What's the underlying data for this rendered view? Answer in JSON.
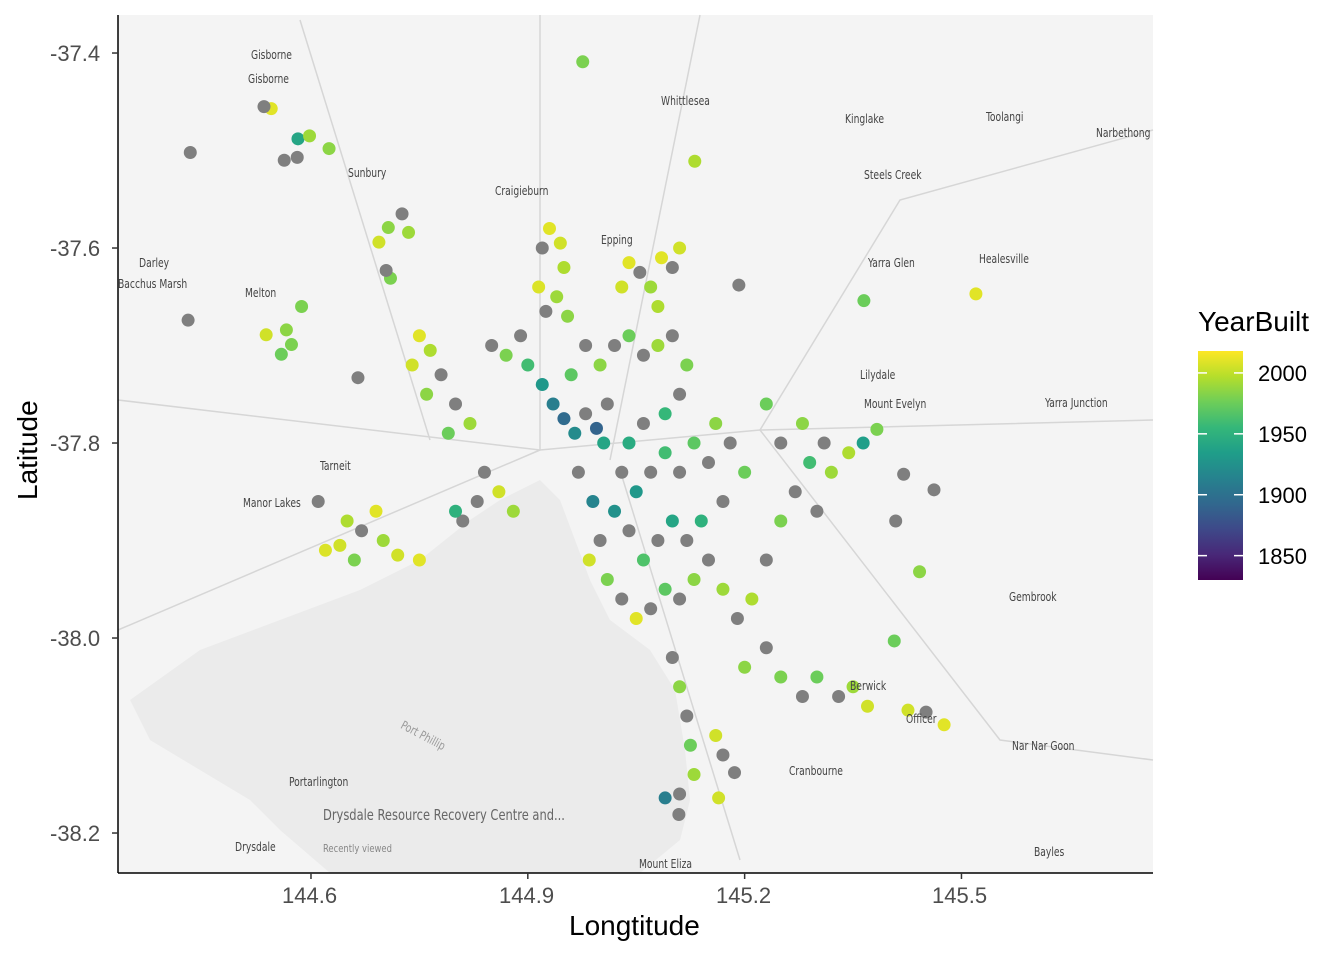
{
  "chart_data": {
    "type": "scatter",
    "title": "",
    "xlabel": "Longtitude",
    "ylabel": "Latitude",
    "xlim": [
      144.333,
      145.765
    ],
    "ylim": [
      -38.241,
      -37.361
    ],
    "x_ticks": [
      144.6,
      144.9,
      145.2,
      145.5
    ],
    "x_tick_labels": [
      "144.6",
      "144.9",
      "145.2",
      "145.5"
    ],
    "y_ticks": [
      -37.4,
      -37.6,
      -37.8,
      -38.0,
      -38.2
    ],
    "y_tick_labels": [
      "-37.4",
      "-37.6",
      "-37.8",
      "-38.0",
      "-38.2"
    ],
    "grid": false,
    "background": "road map of Melbourne region",
    "color_scale": {
      "name": "YearBuilt",
      "palette": "viridis",
      "range": [
        1830,
        2018
      ],
      "ticks": [
        2000,
        1950,
        1900,
        1850
      ],
      "tick_labels": [
        "2000",
        "1950",
        "1900",
        "1850"
      ],
      "na_color": "#7f7f7f"
    },
    "legend": {
      "title": "YearBuilt",
      "placement": "right"
    },
    "point_fields": [
      "Longtitude",
      "Latitude",
      "YearBuilt"
    ],
    "points": [
      [
        144.976,
        -37.409,
        1980
      ],
      [
        144.545,
        -37.457,
        2010
      ],
      [
        144.535,
        -37.455,
        null
      ],
      [
        144.433,
        -37.502,
        null
      ],
      [
        144.582,
        -37.488,
        1940
      ],
      [
        144.598,
        -37.485,
        1990
      ],
      [
        144.625,
        -37.498,
        1985
      ],
      [
        144.563,
        -37.51,
        null
      ],
      [
        144.581,
        -37.507,
        null
      ],
      [
        145.131,
        -37.511,
        1995
      ],
      [
        144.726,
        -37.565,
        null
      ],
      [
        144.707,
        -37.579,
        1985
      ],
      [
        144.735,
        -37.584,
        1990
      ],
      [
        144.694,
        -37.594,
        2005
      ],
      [
        144.71,
        -37.631,
        1980
      ],
      [
        144.704,
        -37.623,
        null
      ],
      [
        144.43,
        -37.674,
        null
      ],
      [
        144.538,
        -37.689,
        2005
      ],
      [
        144.566,
        -37.684,
        1985
      ],
      [
        144.573,
        -37.699,
        1980
      ],
      [
        144.559,
        -37.709,
        1975
      ],
      [
        144.587,
        -37.66,
        1980
      ],
      [
        144.665,
        -37.733,
        null
      ],
      [
        145.192,
        -37.638,
        null
      ],
      [
        145.365,
        -37.654,
        1975
      ],
      [
        145.52,
        -37.647,
        2010
      ],
      [
        145.364,
        -37.8,
        1935
      ],
      [
        145.383,
        -37.786,
        1980
      ],
      [
        145.344,
        -37.81,
        1995
      ],
      [
        145.42,
        -37.832,
        null
      ],
      [
        145.462,
        -37.848,
        null
      ],
      [
        145.409,
        -37.88,
        null
      ],
      [
        145.442,
        -37.932,
        1985
      ],
      [
        145.407,
        -38.003,
        1975
      ],
      [
        145.426,
        -38.074,
        2005
      ],
      [
        145.451,
        -38.076,
        null
      ],
      [
        145.476,
        -38.089,
        2010
      ],
      [
        145.109,
        -38.181,
        null
      ],
      [
        145.09,
        -38.164,
        1910
      ],
      [
        145.164,
        -38.164,
        2005
      ],
      [
        145.186,
        -38.138,
        null
      ],
      [
        144.93,
        -37.58,
        2010
      ],
      [
        144.945,
        -37.595,
        2005
      ],
      [
        144.92,
        -37.6,
        null
      ],
      [
        144.95,
        -37.62,
        1995
      ],
      [
        144.915,
        -37.64,
        2008
      ],
      [
        144.94,
        -37.65,
        1990
      ],
      [
        144.925,
        -37.665,
        null
      ],
      [
        144.955,
        -37.67,
        1985
      ],
      [
        145.04,
        -37.615,
        2010
      ],
      [
        145.055,
        -37.625,
        null
      ],
      [
        145.03,
        -37.64,
        2005
      ],
      [
        145.07,
        -37.64,
        1990
      ],
      [
        145.085,
        -37.61,
        2010
      ],
      [
        145.1,
        -37.62,
        null
      ],
      [
        145.11,
        -37.6,
        2005
      ],
      [
        145.08,
        -37.66,
        1995
      ],
      [
        144.75,
        -37.69,
        2010
      ],
      [
        144.765,
        -37.705,
        1995
      ],
      [
        144.74,
        -37.72,
        2005
      ],
      [
        144.78,
        -37.73,
        null
      ],
      [
        144.76,
        -37.75,
        1985
      ],
      [
        144.8,
        -37.76,
        null
      ],
      [
        144.79,
        -37.79,
        1975
      ],
      [
        144.82,
        -37.78,
        1990
      ],
      [
        144.85,
        -37.7,
        null
      ],
      [
        144.87,
        -37.71,
        1980
      ],
      [
        144.89,
        -37.69,
        null
      ],
      [
        144.9,
        -37.72,
        1960
      ],
      [
        144.92,
        -37.74,
        1930
      ],
      [
        144.935,
        -37.76,
        1910
      ],
      [
        144.95,
        -37.775,
        1895
      ],
      [
        144.965,
        -37.79,
        1920
      ],
      [
        144.98,
        -37.77,
        null
      ],
      [
        144.995,
        -37.785,
        1890
      ],
      [
        145.005,
        -37.8,
        1940
      ],
      [
        145.01,
        -37.76,
        null
      ],
      [
        144.96,
        -37.73,
        1970
      ],
      [
        144.98,
        -37.7,
        null
      ],
      [
        145.0,
        -37.72,
        1985
      ],
      [
        145.02,
        -37.7,
        null
      ],
      [
        145.04,
        -37.69,
        1975
      ],
      [
        145.06,
        -37.71,
        null
      ],
      [
        145.08,
        -37.7,
        1990
      ],
      [
        145.1,
        -37.69,
        null
      ],
      [
        145.12,
        -37.72,
        1980
      ],
      [
        145.11,
        -37.75,
        null
      ],
      [
        145.09,
        -37.77,
        1955
      ],
      [
        145.06,
        -37.78,
        null
      ],
      [
        145.04,
        -37.8,
        1945
      ],
      [
        145.03,
        -37.83,
        null
      ],
      [
        145.05,
        -37.85,
        1930
      ],
      [
        145.07,
        -37.83,
        null
      ],
      [
        145.09,
        -37.81,
        1960
      ],
      [
        145.11,
        -37.83,
        null
      ],
      [
        145.13,
        -37.8,
        1970
      ],
      [
        145.15,
        -37.82,
        null
      ],
      [
        145.16,
        -37.78,
        1985
      ],
      [
        145.18,
        -37.8,
        null
      ],
      [
        145.2,
        -37.83,
        1975
      ],
      [
        145.17,
        -37.86,
        null
      ],
      [
        145.14,
        -37.88,
        1950
      ],
      [
        145.12,
        -37.9,
        null
      ],
      [
        145.1,
        -37.88,
        1940
      ],
      [
        145.08,
        -37.9,
        null
      ],
      [
        145.06,
        -37.92,
        1965
      ],
      [
        145.04,
        -37.89,
        null
      ],
      [
        145.02,
        -37.87,
        1925
      ],
      [
        145.0,
        -37.9,
        null
      ],
      [
        144.99,
        -37.86,
        1915
      ],
      [
        144.97,
        -37.83,
        null
      ],
      [
        144.985,
        -37.92,
        2005
      ],
      [
        145.01,
        -37.94,
        1980
      ],
      [
        145.03,
        -37.96,
        null
      ],
      [
        145.05,
        -37.98,
        2010
      ],
      [
        145.07,
        -37.97,
        null
      ],
      [
        145.09,
        -37.95,
        1970
      ],
      [
        145.11,
        -37.96,
        null
      ],
      [
        145.13,
        -37.94,
        1985
      ],
      [
        145.15,
        -37.92,
        null
      ],
      [
        145.17,
        -37.95,
        1990
      ],
      [
        145.19,
        -37.98,
        null
      ],
      [
        145.21,
        -37.96,
        1995
      ],
      [
        145.23,
        -37.92,
        null
      ],
      [
        145.25,
        -37.88,
        1980
      ],
      [
        145.27,
        -37.85,
        null
      ],
      [
        145.29,
        -37.82,
        1960
      ],
      [
        145.31,
        -37.8,
        null
      ],
      [
        145.28,
        -37.78,
        1985
      ],
      [
        145.25,
        -37.8,
        null
      ],
      [
        145.23,
        -37.76,
        1975
      ],
      [
        145.32,
        -37.83,
        1990
      ],
      [
        145.3,
        -37.87,
        null
      ],
      [
        144.84,
        -37.83,
        null
      ],
      [
        144.86,
        -37.85,
        2005
      ],
      [
        144.83,
        -37.86,
        null
      ],
      [
        144.88,
        -37.87,
        1990
      ],
      [
        144.81,
        -37.88,
        null
      ],
      [
        144.8,
        -37.87,
        1950
      ],
      [
        144.65,
        -37.88,
        1995
      ],
      [
        144.67,
        -37.89,
        null
      ],
      [
        144.64,
        -37.905,
        2005
      ],
      [
        144.69,
        -37.87,
        2010
      ],
      [
        144.66,
        -37.92,
        1980
      ],
      [
        144.62,
        -37.91,
        2008
      ],
      [
        144.7,
        -37.9,
        1990
      ],
      [
        144.72,
        -37.915,
        2005
      ],
      [
        144.75,
        -37.92,
        2010
      ],
      [
        144.61,
        -37.86,
        null
      ],
      [
        145.1,
        -38.02,
        null
      ],
      [
        145.11,
        -38.05,
        1985
      ],
      [
        145.12,
        -38.08,
        null
      ],
      [
        145.125,
        -38.11,
        1975
      ],
      [
        145.13,
        -38.14,
        1990
      ],
      [
        145.11,
        -38.16,
        null
      ],
      [
        145.16,
        -38.1,
        2005
      ],
      [
        145.17,
        -38.12,
        null
      ],
      [
        145.2,
        -38.03,
        1985
      ],
      [
        145.23,
        -38.01,
        null
      ],
      [
        145.25,
        -38.04,
        1980
      ],
      [
        145.28,
        -38.06,
        null
      ],
      [
        145.3,
        -38.04,
        1975
      ],
      [
        145.33,
        -38.06,
        null
      ],
      [
        145.35,
        -38.05,
        1990
      ],
      [
        145.37,
        -38.07,
        2005
      ]
    ]
  },
  "map_labels": [
    "Gisborne",
    "Gisborne",
    "Whittlesea",
    "Kinglake",
    "Toolangi",
    "Narbethong",
    "Sunbury",
    "Craigieburn",
    "Steels Creek",
    "Epping",
    "Darley",
    "Bacchus Marsh",
    "Melton",
    "Yarra Glen",
    "Healesville",
    "Lilydale",
    "Mount Evelyn",
    "Yarra Junction",
    "Tarneit",
    "Manor Lakes",
    "Gembrook",
    "Berwick",
    "Officer",
    "Nar Nar Goon",
    "Cranbourne",
    "Portarlington",
    "Drysdale",
    "Bayles",
    "Mount Eliza",
    "Port Phillip",
    "Drysdale Resource Recovery Centre and...",
    "Recently viewed"
  ]
}
